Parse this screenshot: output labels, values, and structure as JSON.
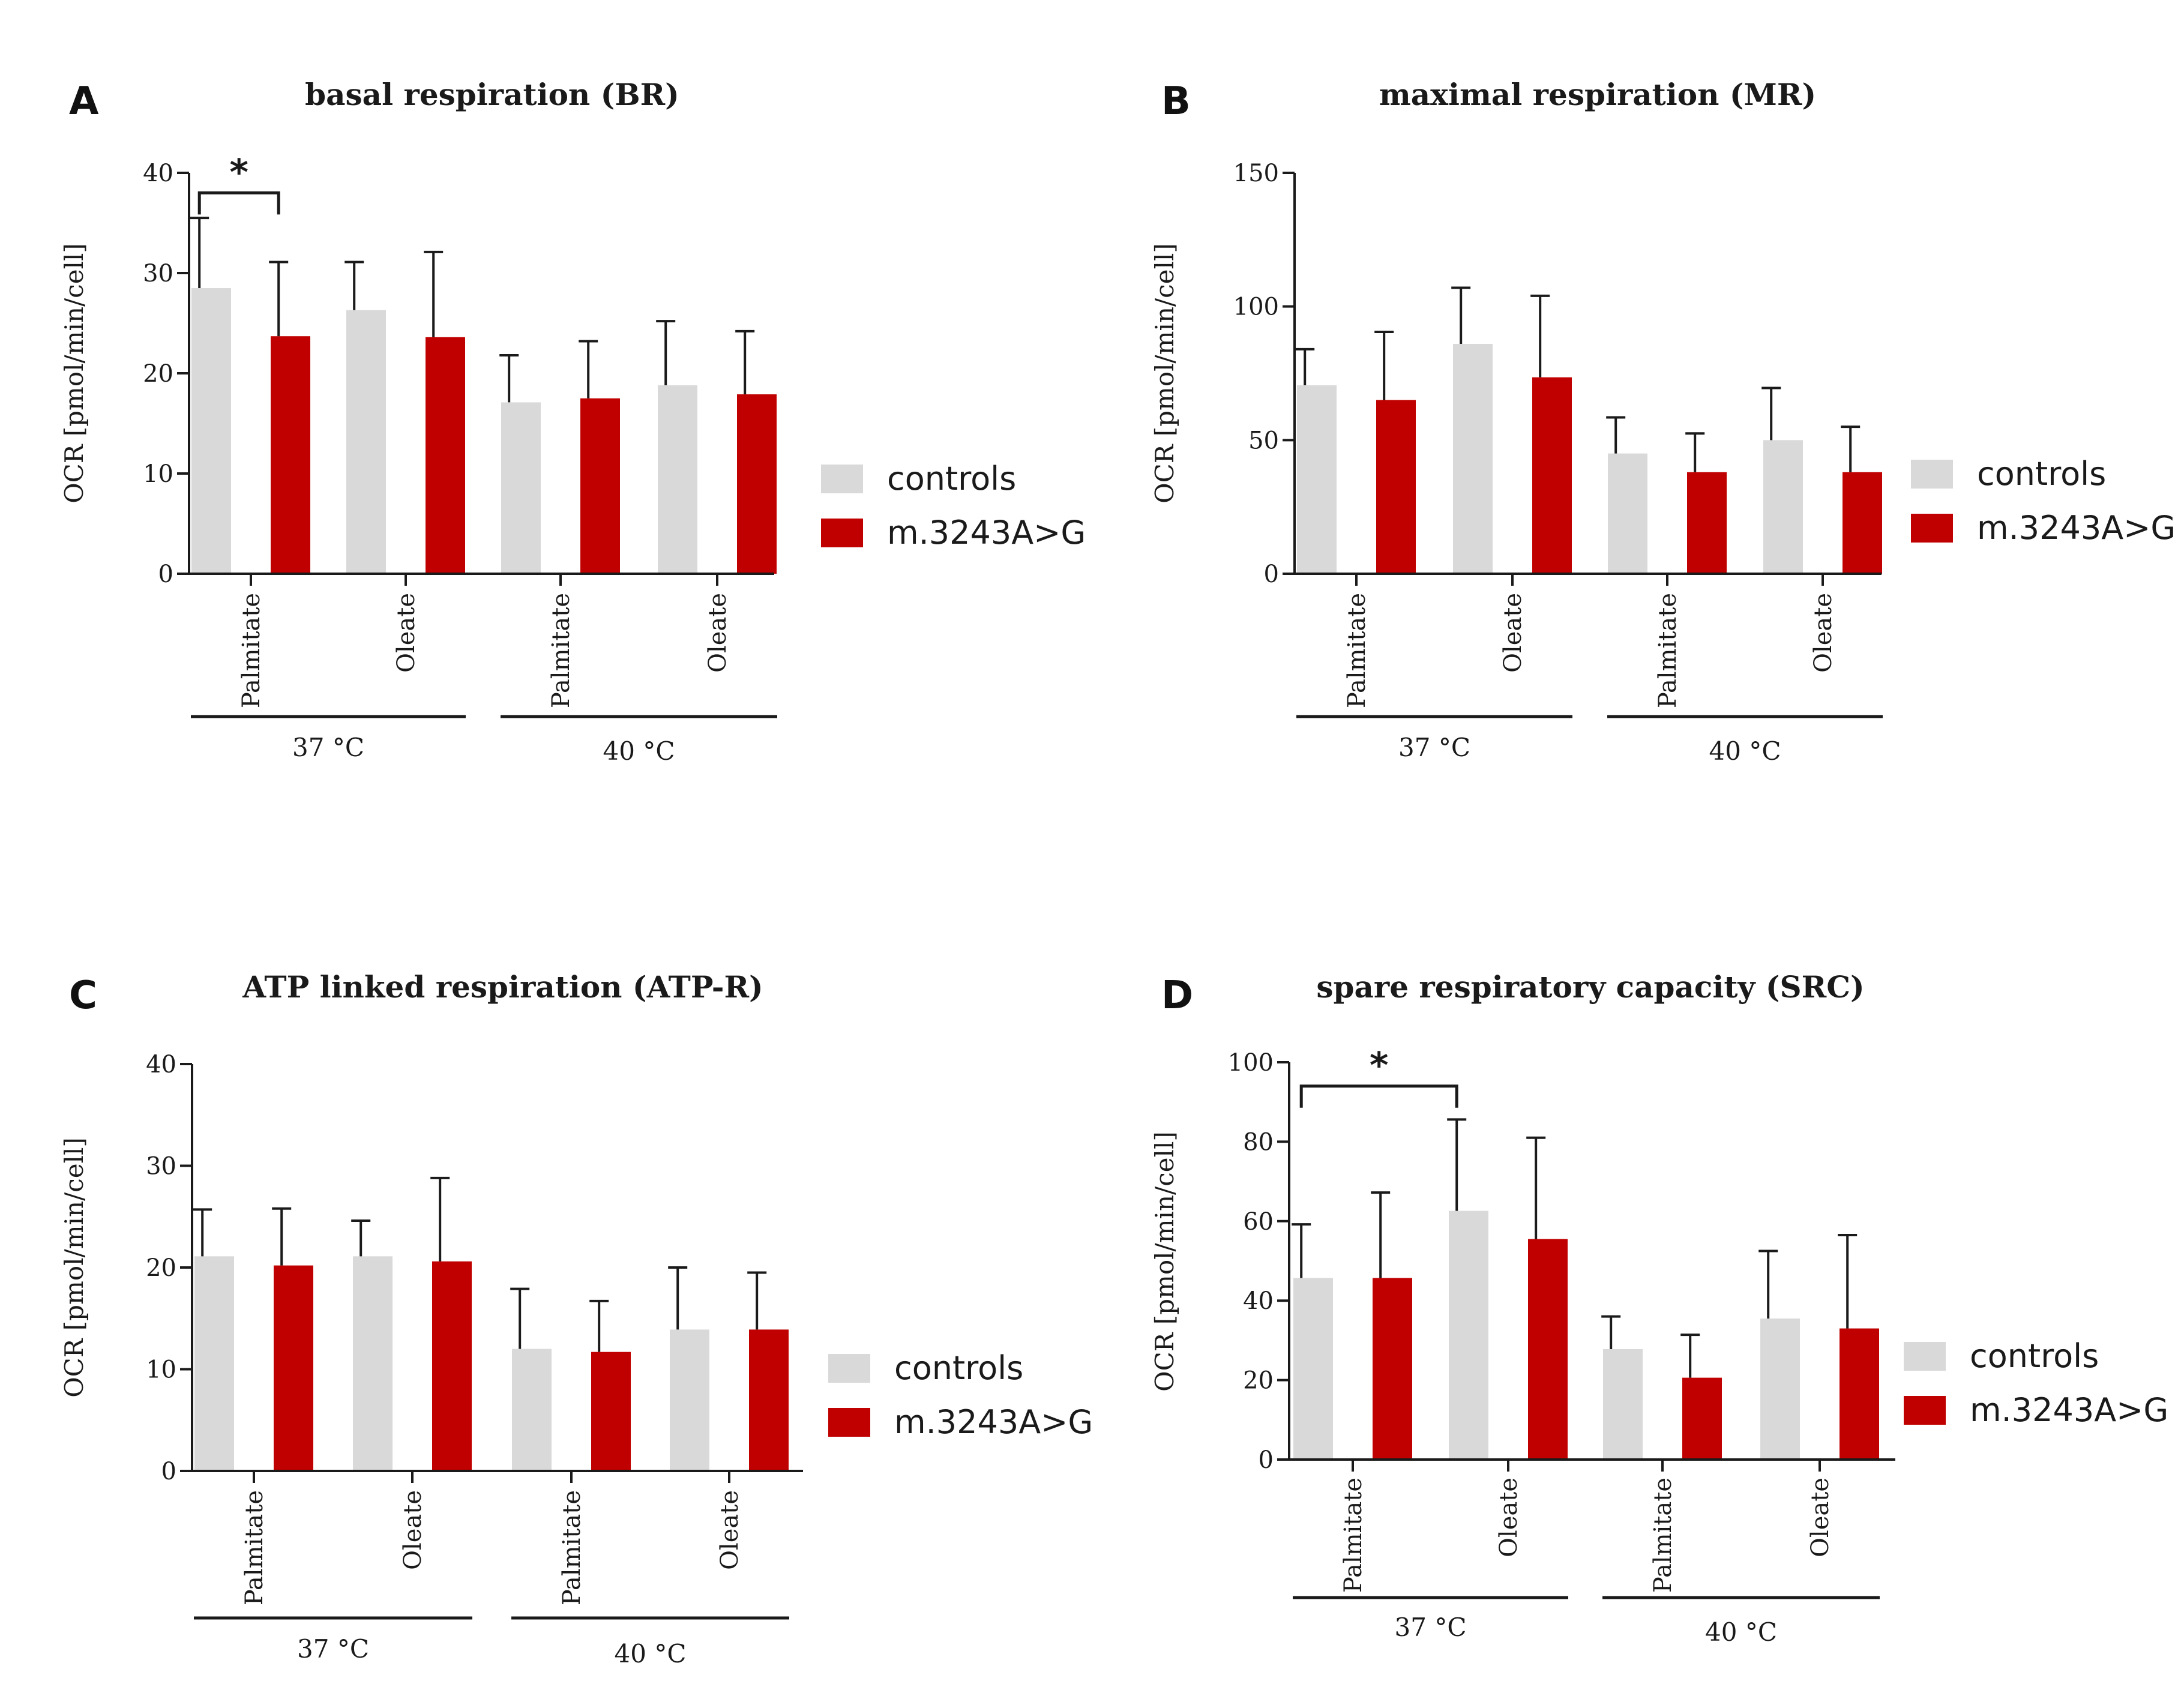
{
  "chart_data": [
    {
      "type": "bar",
      "panel": "A",
      "title": "basal respiration (BR)",
      "ylabel": "OCR [pmol/min/cell]",
      "ylim": [
        0,
        40
      ],
      "yticks": [
        0,
        10,
        20,
        30,
        40
      ],
      "categories": [
        "Palmitate",
        "Oleate",
        "Palmitate",
        "Oleate"
      ],
      "groups": [
        {
          "label": "37 °C",
          "categories": [
            0,
            1
          ]
        },
        {
          "label": "40 °C",
          "categories": [
            2,
            3
          ]
        }
      ],
      "series": [
        {
          "name": "controls",
          "color": "#d9d9d9",
          "values": [
            28.5,
            26.3,
            17.1,
            18.8
          ],
          "errors": [
            7.0,
            4.8,
            4.7,
            6.4
          ]
        },
        {
          "name": "m.3243A>G",
          "color": "#c00000",
          "values": [
            23.7,
            23.6,
            17.5,
            17.9
          ],
          "errors": [
            7.4,
            8.5,
            5.7,
            6.3
          ]
        }
      ],
      "significance": [
        {
          "from": [
            0,
            0
          ],
          "to": [
            0,
            1
          ],
          "label": "*",
          "y": 38
        }
      ],
      "legend": "right"
    },
    {
      "type": "bar",
      "panel": "B",
      "title": "maximal respiration (MR)",
      "ylabel": "OCR [pmol/min/cell]",
      "ylim": [
        0,
        150
      ],
      "yticks": [
        0,
        50,
        100,
        150
      ],
      "categories": [
        "Palmitate",
        "Oleate",
        "Palmitate",
        "Oleate"
      ],
      "groups": [
        {
          "label": "37 °C",
          "categories": [
            0,
            1
          ]
        },
        {
          "label": "40 °C",
          "categories": [
            2,
            3
          ]
        }
      ],
      "series": [
        {
          "name": "controls",
          "color": "#d9d9d9",
          "values": [
            70.5,
            86.0,
            45.0,
            50.0
          ],
          "errors": [
            13.5,
            21.0,
            13.5,
            19.5
          ]
        },
        {
          "name": "m.3243A>G",
          "color": "#c00000",
          "values": [
            65.0,
            73.5,
            38.0,
            38.0
          ],
          "errors": [
            25.5,
            30.5,
            14.5,
            17.0
          ]
        }
      ],
      "significance": [],
      "legend": "right"
    },
    {
      "type": "bar",
      "panel": "C",
      "title": "ATP linked respiration (ATP-R)",
      "ylabel": "OCR [pmol/min/cell]",
      "ylim": [
        0,
        40
      ],
      "yticks": [
        0,
        10,
        20,
        30,
        40
      ],
      "categories": [
        "Palmitate",
        "Oleate",
        "Palmitate",
        "Oleate"
      ],
      "groups": [
        {
          "label": "37 °C",
          "categories": [
            0,
            1
          ]
        },
        {
          "label": "40 °C",
          "categories": [
            2,
            3
          ]
        }
      ],
      "series": [
        {
          "name": "controls",
          "color": "#d9d9d9",
          "values": [
            21.1,
            21.1,
            12.0,
            13.9
          ],
          "errors": [
            4.6,
            3.5,
            5.9,
            6.1
          ]
        },
        {
          "name": "m.3243A>G",
          "color": "#c00000",
          "values": [
            20.2,
            20.6,
            11.7,
            13.9
          ],
          "errors": [
            5.6,
            8.2,
            5.0,
            5.6
          ]
        }
      ],
      "significance": [],
      "legend": "right"
    },
    {
      "type": "bar",
      "panel": "D",
      "title": "spare respiratory capacity (SRC)",
      "ylabel": "OCR [pmol/min/cell]",
      "ylim": [
        0,
        100
      ],
      "yticks": [
        0,
        20,
        40,
        60,
        80,
        100
      ],
      "categories": [
        "Palmitate",
        "Oleate",
        "Palmitate",
        "Oleate"
      ],
      "groups": [
        {
          "label": "37 °C",
          "categories": [
            0,
            1
          ]
        },
        {
          "label": "40 °C",
          "categories": [
            2,
            3
          ]
        }
      ],
      "series": [
        {
          "name": "controls",
          "color": "#d9d9d9",
          "values": [
            45.7,
            62.6,
            27.8,
            35.5
          ],
          "errors": [
            13.5,
            23.0,
            8.2,
            17.0
          ]
        },
        {
          "name": "m.3243A>G",
          "color": "#c00000",
          "values": [
            45.7,
            55.5,
            20.6,
            33.0
          ],
          "errors": [
            21.5,
            25.5,
            10.8,
            23.5
          ]
        }
      ],
      "significance": [
        {
          "from": [
            0,
            0
          ],
          "to": [
            1,
            0
          ],
          "label": "*",
          "y": 94
        }
      ],
      "legend": "right"
    }
  ]
}
